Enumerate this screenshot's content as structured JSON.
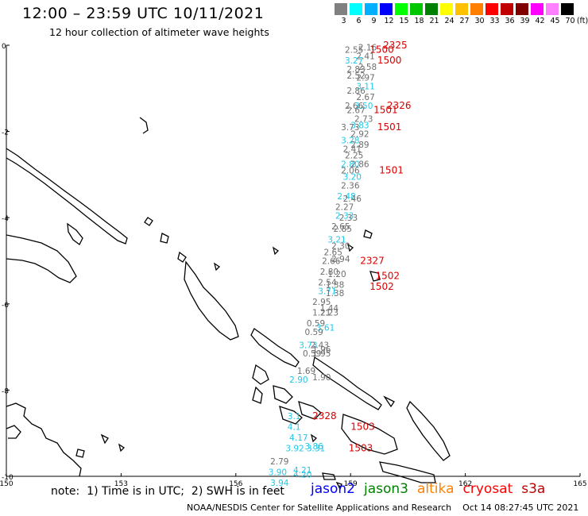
{
  "title": "12:00 – 23:59 UTC 10/11/2021",
  "subtitle": "12 hour collection of altimeter wave heights",
  "legend": {
    "unit": "(ft)",
    "colors": [
      "#808080",
      "#00ffff",
      "#00b0ff",
      "#0000ff",
      "#00ff00",
      "#00c800",
      "#008000",
      "#ffff00",
      "#ffc000",
      "#ff8000",
      "#ff0000",
      "#c00000",
      "#800000",
      "#ff00ff",
      "#ff80ff",
      "#000000"
    ],
    "labels": [
      "3",
      "6",
      "9",
      "12",
      "15",
      "18",
      "21",
      "24",
      "27",
      "30",
      "33",
      "36",
      "39",
      "42",
      "45",
      "70"
    ]
  },
  "axes": {
    "lat_labels": [
      "0",
      "-2",
      "-4",
      "-6",
      "-8",
      "-10"
    ],
    "lon_labels": [
      "150",
      "153",
      "156",
      "159",
      "162",
      "165"
    ]
  },
  "track_labels": [
    {
      "t": "2.16",
      "c": "gray",
      "lon": 159.2,
      "lat": -0.05
    },
    {
      "t": "2325",
      "c": "red",
      "lon": 159.85,
      "lat": 0.0
    },
    {
      "t": "2.55",
      "c": "gray",
      "lon": 158.85,
      "lat": -0.1
    },
    {
      "t": "1500",
      "c": "red",
      "lon": 159.5,
      "lat": -0.1
    },
    {
      "t": "2.41",
      "c": "gray",
      "lon": 159.15,
      "lat": -0.25
    },
    {
      "t": "3.27",
      "c": "cyan",
      "lon": 158.85,
      "lat": -0.35
    },
    {
      "t": "1500",
      "c": "red",
      "lon": 159.7,
      "lat": -0.35
    },
    {
      "t": "2.58",
      "c": "gray",
      "lon": 159.2,
      "lat": -0.5
    },
    {
      "t": "2.83",
      "c": "gray",
      "lon": 158.9,
      "lat": -0.55
    },
    {
      "t": "2.52",
      "c": "gray",
      "lon": 158.9,
      "lat": -0.7
    },
    {
      "t": "2.97",
      "c": "gray",
      "lon": 159.15,
      "lat": -0.75
    },
    {
      "t": "3.11",
      "c": "cyan",
      "lon": 159.15,
      "lat": -0.95
    },
    {
      "t": "2.86",
      "c": "gray",
      "lon": 158.9,
      "lat": -1.05
    },
    {
      "t": "2.67",
      "c": "gray",
      "lon": 159.15,
      "lat": -1.2
    },
    {
      "t": "2.66",
      "c": "gray",
      "lon": 158.85,
      "lat": -1.4
    },
    {
      "t": "3.50",
      "c": "cyan",
      "lon": 159.1,
      "lat": -1.4
    },
    {
      "t": "2326",
      "c": "red",
      "lon": 159.95,
      "lat": -1.4
    },
    {
      "t": "2.67",
      "c": "gray",
      "lon": 158.9,
      "lat": -1.5
    },
    {
      "t": "1501",
      "c": "red",
      "lon": 159.6,
      "lat": -1.5
    },
    {
      "t": "2.73",
      "c": "gray",
      "lon": 159.1,
      "lat": -1.7
    },
    {
      "t": "3.73",
      "c": "gray",
      "lon": 158.75,
      "lat": -1.9
    },
    {
      "t": "3.83",
      "c": "cyan",
      "lon": 159.0,
      "lat": -1.85
    },
    {
      "t": "1501",
      "c": "red",
      "lon": 159.7,
      "lat": -1.9
    },
    {
      "t": "2.92",
      "c": "gray",
      "lon": 159.0,
      "lat": -2.05
    },
    {
      "t": "3.28",
      "c": "cyan",
      "lon": 158.75,
      "lat": -2.2
    },
    {
      "t": "2.89",
      "c": "gray",
      "lon": 159.0,
      "lat": -2.3
    },
    {
      "t": "2.41",
      "c": "gray",
      "lon": 158.8,
      "lat": -2.4
    },
    {
      "t": "2.25",
      "c": "gray",
      "lon": 158.85,
      "lat": -2.55
    },
    {
      "t": "2.80",
      "c": "cyan",
      "lon": 158.75,
      "lat": -2.75
    },
    {
      "t": "2.86",
      "c": "gray",
      "lon": 159.0,
      "lat": -2.75
    },
    {
      "t": "1501",
      "c": "red",
      "lon": 159.75,
      "lat": -2.9
    },
    {
      "t": "2.06",
      "c": "gray",
      "lon": 158.75,
      "lat": -2.9
    },
    {
      "t": "3.20",
      "c": "cyan",
      "lon": 158.8,
      "lat": -3.05
    },
    {
      "t": "2.36",
      "c": "gray",
      "lon": 158.75,
      "lat": -3.25
    },
    {
      "t": "2.48",
      "c": "cyan",
      "lon": 158.65,
      "lat": -3.5
    },
    {
      "t": "2.46",
      "c": "gray",
      "lon": 158.8,
      "lat": -3.55
    },
    {
      "t": "2.27",
      "c": "gray",
      "lon": 158.6,
      "lat": -3.75
    },
    {
      "t": "2.33",
      "c": "cyan",
      "lon": 158.6,
      "lat": -3.95
    },
    {
      "t": "2.33",
      "c": "gray",
      "lon": 158.7,
      "lat": -4.0
    },
    {
      "t": "2.65",
      "c": "gray",
      "lon": 158.5,
      "lat": -4.2
    },
    {
      "t": "2.85",
      "c": "gray",
      "lon": 158.55,
      "lat": -4.25
    },
    {
      "t": "3.21",
      "c": "cyan",
      "lon": 158.4,
      "lat": -4.5
    },
    {
      "t": "2.30",
      "c": "gray",
      "lon": 158.5,
      "lat": -4.65
    },
    {
      "t": "2.65",
      "c": "gray",
      "lon": 158.3,
      "lat": -4.8
    },
    {
      "t": "2.66",
      "c": "gray",
      "lon": 158.25,
      "lat": -5.0
    },
    {
      "t": "2.94",
      "c": "gray",
      "lon": 158.5,
      "lat": -4.95
    },
    {
      "t": "2327",
      "c": "red",
      "lon": 159.25,
      "lat": -5.0
    },
    {
      "t": "2.80",
      "c": "gray",
      "lon": 158.2,
      "lat": -5.25
    },
    {
      "t": "1.20",
      "c": "gray",
      "lon": 158.4,
      "lat": -5.3
    },
    {
      "t": "1502",
      "c": "red",
      "lon": 159.65,
      "lat": -5.35
    },
    {
      "t": "2.54",
      "c": "gray",
      "lon": 158.15,
      "lat": -5.5
    },
    {
      "t": "1.38",
      "c": "gray",
      "lon": 158.35,
      "lat": -5.55
    },
    {
      "t": "1502",
      "c": "red",
      "lon": 159.5,
      "lat": -5.6
    },
    {
      "t": "3.71",
      "c": "cyan",
      "lon": 158.15,
      "lat": -5.7
    },
    {
      "t": "1.38",
      "c": "gray",
      "lon": 158.35,
      "lat": -5.75
    },
    {
      "t": "2.95",
      "c": "gray",
      "lon": 158.0,
      "lat": -5.95
    },
    {
      "t": "1.44",
      "c": "gray",
      "lon": 158.2,
      "lat": -6.1
    },
    {
      "t": "1.21",
      "c": "gray",
      "lon": 158.0,
      "lat": -6.2
    },
    {
      "t": "2.23",
      "c": "gray",
      "lon": 158.2,
      "lat": -6.2
    },
    {
      "t": "0.59",
      "c": "gray",
      "lon": 157.85,
      "lat": -6.45
    },
    {
      "t": "3.61",
      "c": "cyan",
      "lon": 158.1,
      "lat": -6.55
    },
    {
      "t": "0.59",
      "c": "gray",
      "lon": 157.8,
      "lat": -6.65
    },
    {
      "t": "3.73",
      "c": "cyan",
      "lon": 157.65,
      "lat": -6.95
    },
    {
      "t": "2.43",
      "c": "gray",
      "lon": 157.95,
      "lat": -6.95
    },
    {
      "t": "1.96",
      "c": "gray",
      "lon": 158.0,
      "lat": -7.05
    },
    {
      "t": "0.59",
      "c": "gray",
      "lon": 157.75,
      "lat": -7.15
    },
    {
      "t": "1.95",
      "c": "gray",
      "lon": 158.0,
      "lat": -7.15
    },
    {
      "t": "1.69",
      "c": "gray",
      "lon": 157.6,
      "lat": -7.55
    },
    {
      "t": "1.90",
      "c": "gray",
      "lon": 158.0,
      "lat": -7.7
    },
    {
      "t": "2.90",
      "c": "cyan",
      "lon": 157.4,
      "lat": -7.75
    },
    {
      "t": "2328",
      "c": "red",
      "lon": 158.0,
      "lat": -8.6
    },
    {
      "t": "3.1",
      "c": "cyan",
      "lon": 157.35,
      "lat": -8.6
    },
    {
      "t": "1503",
      "c": "red",
      "lon": 159.0,
      "lat": -8.85
    },
    {
      "t": "4.1",
      "c": "cyan",
      "lon": 157.35,
      "lat": -8.85
    },
    {
      "t": "4.17",
      "c": "cyan",
      "lon": 157.4,
      "lat": -9.1
    },
    {
      "t": "3.92",
      "c": "cyan",
      "lon": 157.3,
      "lat": -9.35
    },
    {
      "t": "3.86",
      "c": "cyan",
      "lon": 157.8,
      "lat": -9.3
    },
    {
      "t": "3.31",
      "c": "cyan",
      "lon": 157.85,
      "lat": -9.35
    },
    {
      "t": "1503",
      "c": "red",
      "lon": 158.95,
      "lat": -9.35
    },
    {
      "t": "2.79",
      "c": "gray",
      "lon": 156.9,
      "lat": -9.65
    },
    {
      "t": "3.90",
      "c": "cyan",
      "lon": 156.85,
      "lat": -9.9
    },
    {
      "t": "4.21",
      "c": "cyan",
      "lon": 157.5,
      "lat": -9.85
    },
    {
      "t": "4.20",
      "c": "cyan",
      "lon": 157.5,
      "lat": -9.95
    },
    {
      "t": "3.94",
      "c": "cyan",
      "lon": 156.9,
      "lat": -10.15
    }
  ],
  "note": "note:  1) Time is in UTC;  2) SWH is in feet",
  "satellites": [
    {
      "name": "jason2",
      "color": "#0000ff"
    },
    {
      "name": "jason3",
      "color": "#008000"
    },
    {
      "name": "altika",
      "color": "#ff8000"
    },
    {
      "name": "cryosat",
      "color": "#ff0000"
    },
    {
      "name": "s3a",
      "color": "#c00000"
    }
  ],
  "footer": "NOAA/NESDIS Center for Satellite Applications and Research    Oct 14 08:27:45 UTC 2021"
}
